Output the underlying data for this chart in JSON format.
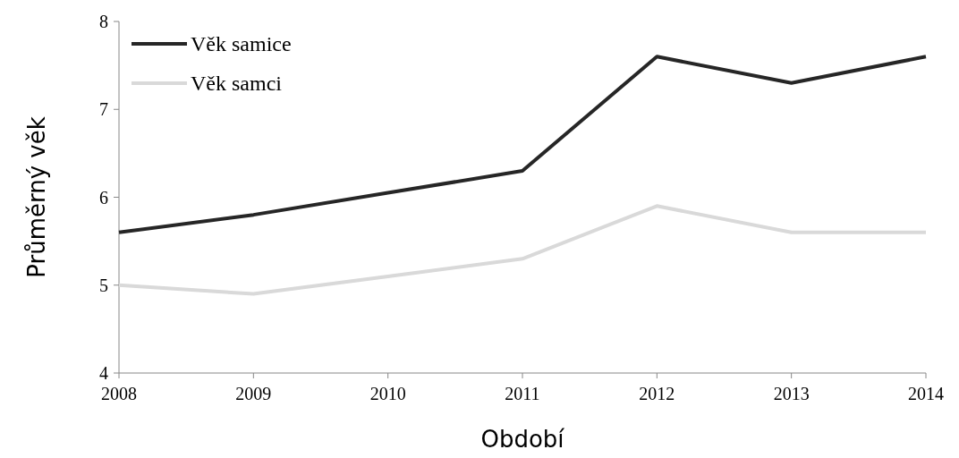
{
  "chart_data": {
    "type": "line",
    "xlabel": "Období",
    "ylabel": "Průměrný věk",
    "x": [
      2008,
      2009,
      2010,
      2011,
      2012,
      2013,
      2014
    ],
    "xlim": [
      2008,
      2014
    ],
    "xticks": [
      2008,
      2009,
      2010,
      2011,
      2012,
      2013,
      2014
    ],
    "ylim": [
      4,
      8
    ],
    "yticks": [
      4,
      5,
      6,
      7,
      8
    ],
    "grid": false,
    "legend": "top left",
    "marker": "none",
    "line_style": "solid",
    "series": [
      {
        "name": "Věk samice",
        "color": "#262626",
        "values": [
          5.6,
          5.8,
          6.05,
          6.3,
          7.6,
          7.3,
          7.6
        ]
      },
      {
        "name": "Věk samci",
        "color": "#d9d9d9",
        "values": [
          5.0,
          4.9,
          5.1,
          5.3,
          5.9,
          5.6,
          5.6
        ]
      }
    ]
  }
}
